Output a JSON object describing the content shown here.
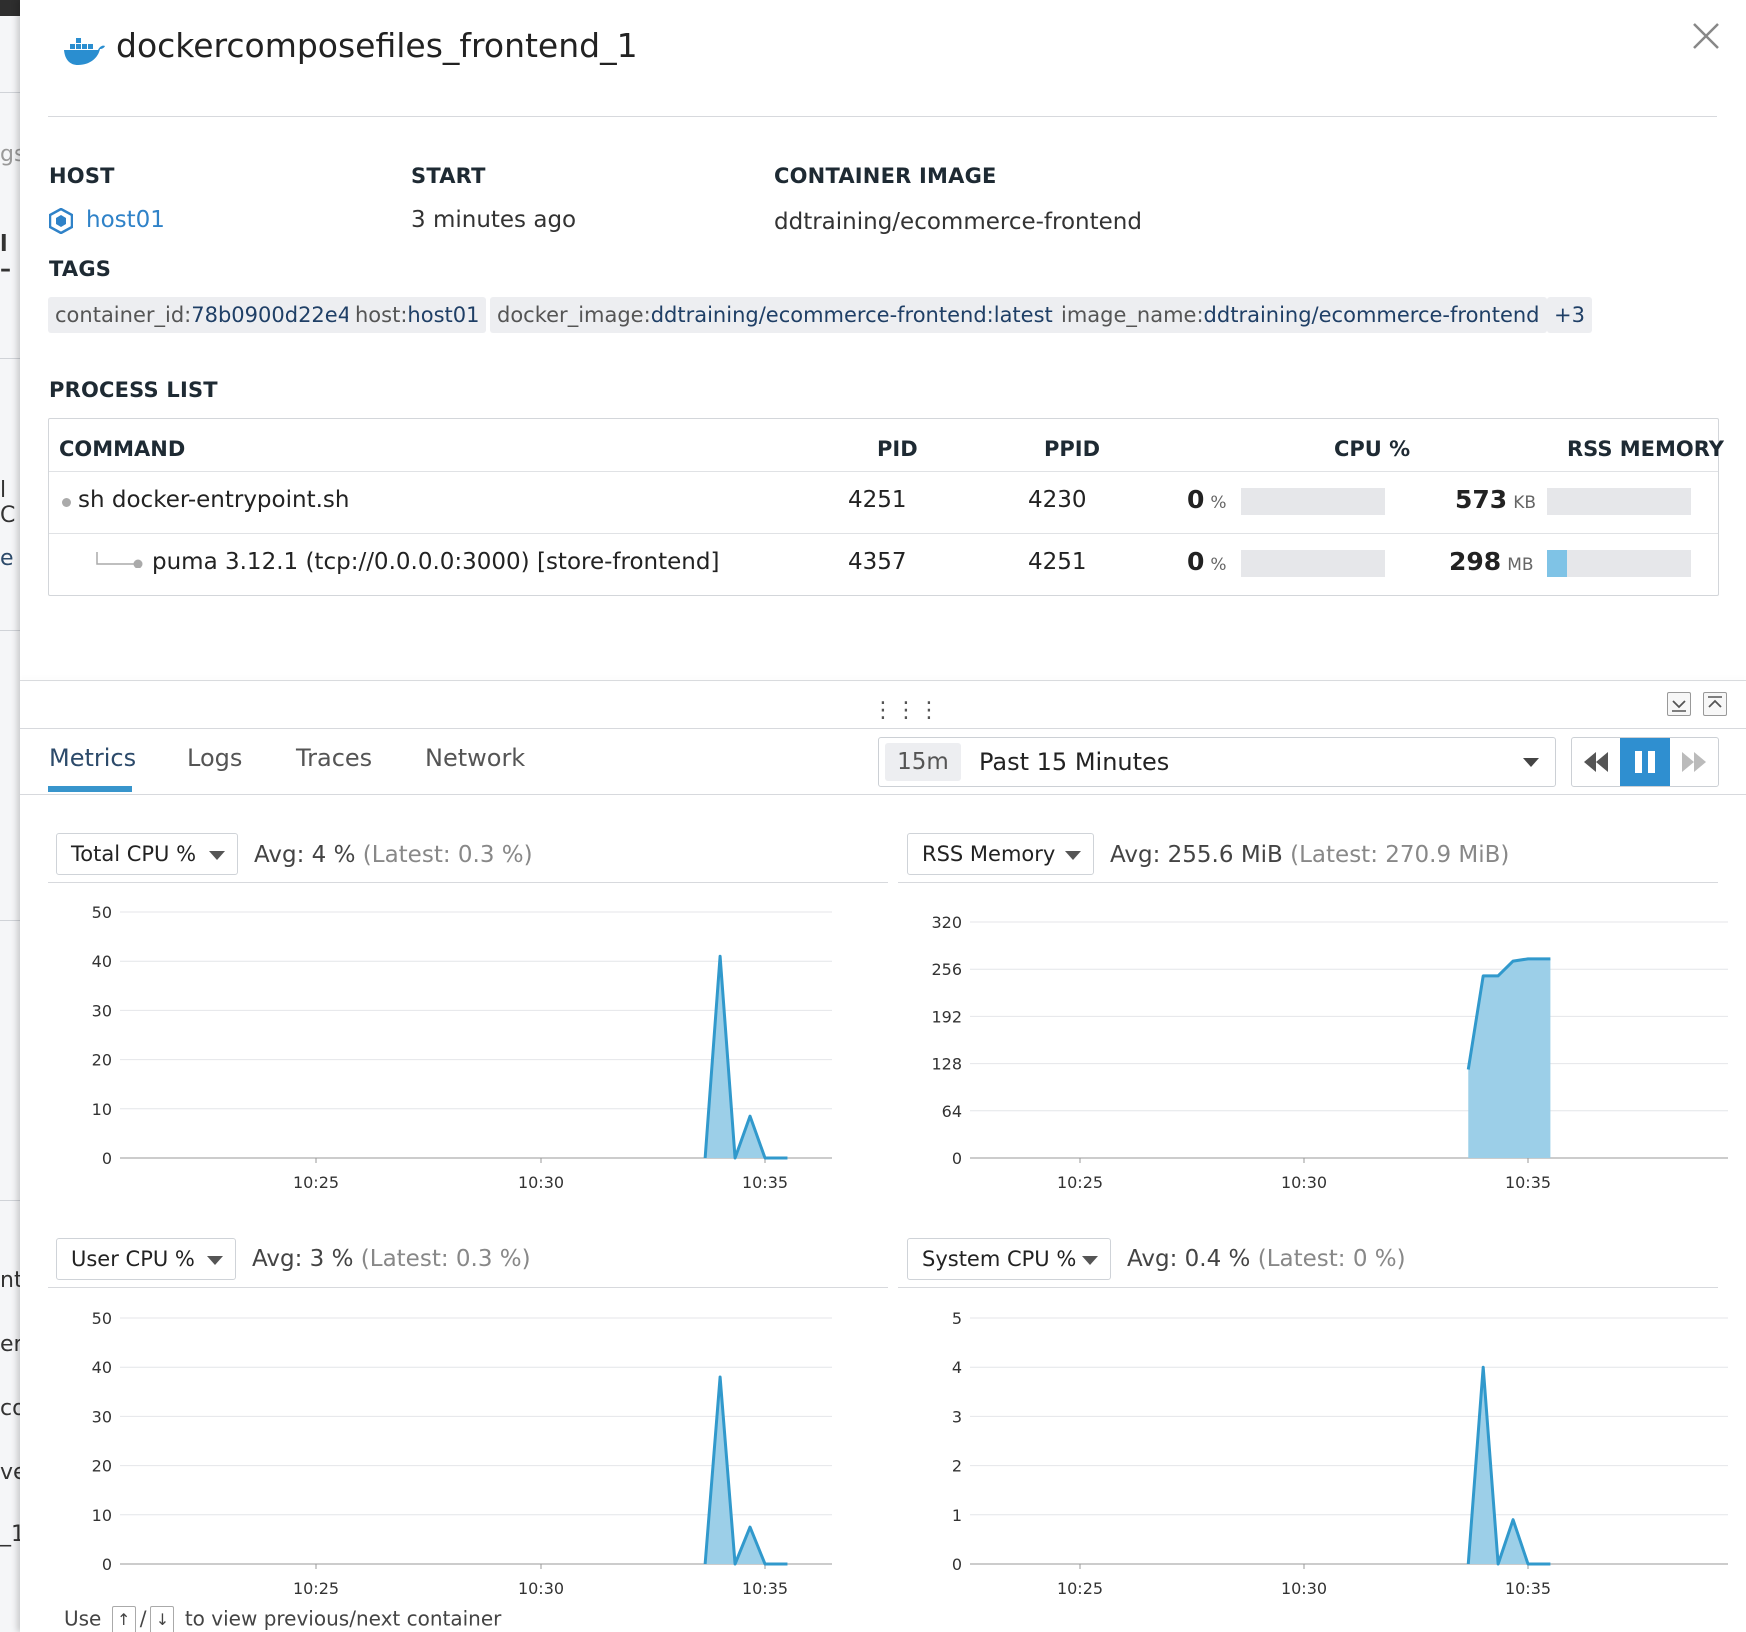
{
  "background_fragments": [
    "gs",
    "l –",
    "l C",
    "e",
    "nt",
    "en",
    "co",
    "ve",
    "_1"
  ],
  "title": "dockercomposefiles_frontend_1",
  "icons": {
    "docker": "docker-whale-icon",
    "close": "close-icon",
    "host": "hexagon-host-icon"
  },
  "info": {
    "host_label": "HOST",
    "host_value": "host01",
    "start_label": "START",
    "start_value": "3 minutes ago",
    "image_label": "CONTAINER IMAGE",
    "image_value": "ddtraining/ecommerce-frontend",
    "tags_label": "TAGS"
  },
  "tags": [
    {
      "key": "container_id:",
      "value": "78b0900d22e4"
    },
    {
      "key": "host:",
      "value": "host01"
    },
    {
      "key": "docker_image:",
      "value": "ddtraining/ecommerce-frontend:latest"
    },
    {
      "key": "image_name:",
      "value": "ddtraining/ecommerce-frontend"
    },
    {
      "key": "",
      "value": "+3"
    }
  ],
  "process_list": {
    "label": "PROCESS LIST",
    "columns": [
      "COMMAND",
      "PID",
      "PPID",
      "CPU %",
      "RSS MEMORY"
    ],
    "rows": [
      {
        "command": "sh docker-entrypoint.sh",
        "pid": "4251",
        "ppid": "4230",
        "cpu": "0",
        "cpu_unit": "%",
        "cpu_fraction": 0,
        "mem": "573",
        "mem_unit": "KB",
        "mem_fraction": 0
      },
      {
        "command": "puma 3.12.1 (tcp://0.0.0.0:3000) [store-frontend]",
        "pid": "4357",
        "ppid": "4251",
        "cpu": "0",
        "cpu_unit": "%",
        "cpu_fraction": 0,
        "mem": "298",
        "mem_unit": "MB",
        "mem_fraction": 0.14
      }
    ]
  },
  "tabs": [
    "Metrics",
    "Logs",
    "Traces",
    "Network"
  ],
  "active_tab": "Metrics",
  "time": {
    "badge": "15m",
    "label": "Past 15 Minutes"
  },
  "accent_color": "#3895cc",
  "chart_fill_color": "#9ccfe8",
  "chart_line_color": "#3199cc",
  "metrics": [
    {
      "selector": "Total CPU %",
      "avg": "Avg: 4 %",
      "latest": "(Latest: 0.3 %)"
    },
    {
      "selector": "RSS Memory",
      "avg": "Avg: 255.6 MiB",
      "latest": "(Latest: 270.9 MiB)"
    },
    {
      "selector": "User CPU %",
      "avg": "Avg: 3 %",
      "latest": "(Latest: 0.3 %)"
    },
    {
      "selector": "System CPU %",
      "avg": "Avg: 0.4 %",
      "latest": "(Latest: 0 %)"
    }
  ],
  "chart_data": [
    {
      "type": "area",
      "title": "Total CPU %",
      "ylim": [
        0,
        50
      ],
      "yticks": [
        0,
        10,
        20,
        30,
        40,
        50
      ],
      "xticks": [
        "10:25",
        "10:30",
        "10:35"
      ],
      "x": [
        "10:33:40",
        "10:34:00",
        "10:34:20",
        "10:34:40",
        "10:35:00",
        "10:35:30"
      ],
      "values": [
        0,
        41,
        0,
        8.5,
        0,
        0
      ],
      "grid": true
    },
    {
      "type": "area",
      "title": "RSS Memory",
      "ylim": [
        0,
        320
      ],
      "yticks": [
        0,
        64,
        128,
        192,
        256,
        320
      ],
      "xticks": [
        "10:25",
        "10:30",
        "10:35"
      ],
      "x": [
        "10:33:40",
        "10:34:00",
        "10:34:20",
        "10:34:40",
        "10:35:00",
        "10:35:30"
      ],
      "values": [
        120,
        247,
        247,
        267,
        270,
        270
      ],
      "grid": true
    },
    {
      "type": "area",
      "title": "User CPU %",
      "ylim": [
        0,
        50
      ],
      "yticks": [
        0,
        10,
        20,
        30,
        40,
        50
      ],
      "xticks": [
        "10:25",
        "10:30",
        "10:35"
      ],
      "x": [
        "10:33:40",
        "10:34:00",
        "10:34:20",
        "10:34:40",
        "10:35:00",
        "10:35:30"
      ],
      "values": [
        0,
        38,
        0,
        7.5,
        0,
        0
      ],
      "grid": true
    },
    {
      "type": "area",
      "title": "System CPU %",
      "ylim": [
        0,
        5
      ],
      "yticks": [
        0,
        1,
        2,
        3,
        4,
        5
      ],
      "xticks": [
        "10:25",
        "10:30",
        "10:35"
      ],
      "x": [
        "10:33:40",
        "10:34:00",
        "10:34:20",
        "10:34:40",
        "10:35:00",
        "10:35:30"
      ],
      "values": [
        0,
        4,
        0,
        0.9,
        0,
        0
      ],
      "grid": true
    }
  ],
  "footer": {
    "use": "Use",
    "up_key": "↑",
    "slash": "/",
    "down_key": "↓",
    "hint": "to view previous/next container"
  }
}
